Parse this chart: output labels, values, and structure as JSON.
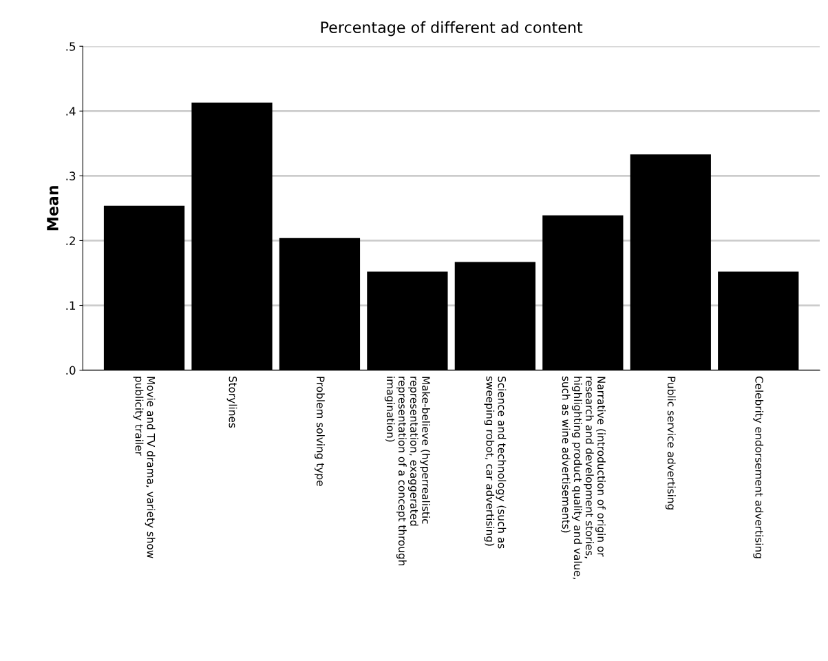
{
  "chart_data": {
    "type": "bar",
    "title": "Percentage of different ad content",
    "ylabel": "Mean",
    "categories": [
      "Movie and TV drama, variety show\npublicity trailer",
      "Storylines",
      "Problem solving type",
      "Make-believe (hyperrealistic\nrepresentation, exaggerated\nrepresentation of a concept through\nimagination)",
      "Science and technology (such as\nsweeping robot, car advertising)",
      "Narrative (introduction of origin or\nresearch and development stories,\nhighlighting product quality and value,\nsuch as wine advertisements)",
      "Public service advertising",
      "Celebrity endorsement advertising"
    ],
    "values": [
      0.254,
      0.413,
      0.204,
      0.152,
      0.167,
      0.239,
      0.333,
      0.152
    ],
    "color": "#000000",
    "ylim": [
      0,
      0.5
    ],
    "yticks": [
      {
        "value": 0,
        "label": ".0"
      },
      {
        "value": 0.1,
        "label": ".1"
      },
      {
        "value": 0.2,
        "label": ".2"
      },
      {
        "value": 0.3,
        "label": ".3"
      },
      {
        "value": 0.4,
        "label": ".4"
      },
      {
        "value": 0.5,
        "label": ".5"
      }
    ],
    "grid": "y",
    "legend": false
  }
}
